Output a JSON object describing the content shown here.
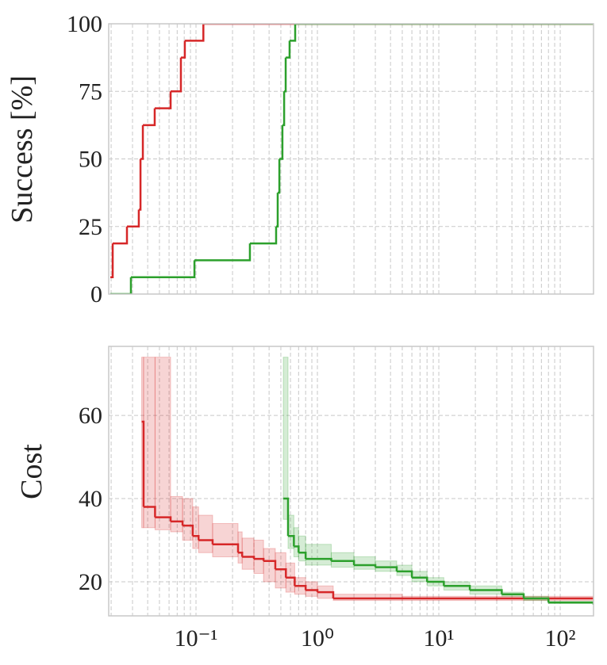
{
  "chart_data": [
    {
      "type": "line",
      "step": "post",
      "ylabel": "Success [%]",
      "xscale": "log",
      "grid": true,
      "minor_grid": true,
      "xlim": [
        0.0191,
        188
      ],
      "xticks": [
        0.1,
        1,
        10,
        100
      ],
      "ylim": [
        0,
        100
      ],
      "yticks": [
        0,
        25,
        50,
        75,
        100
      ],
      "series": [
        {
          "color": "#d62728",
          "x": [
            0.0197,
            0.0206,
            0.027,
            0.0338,
            0.0349,
            0.0365,
            0.0457,
            0.0618,
            0.0751,
            0.0809,
            0.115,
            188
          ],
          "values": [
            6.25,
            18.75,
            25,
            31.25,
            50,
            62.5,
            68.75,
            75,
            87.5,
            93.75,
            100,
            100
          ]
        },
        {
          "color": "#2ca02c",
          "x": [
            0.0197,
            0.0291,
            0.0971,
            0.278,
            0.457,
            0.471,
            0.486,
            0.515,
            0.532,
            0.548,
            0.59,
            0.656,
            188
          ],
          "values": [
            0,
            6.25,
            12.5,
            18.75,
            25,
            37.5,
            50,
            62.5,
            75,
            87.5,
            93.75,
            100,
            100
          ]
        }
      ]
    },
    {
      "type": "line",
      "step": "post",
      "ylabel": "Cost",
      "xscale": "log",
      "grid": true,
      "minor_grid": true,
      "xlim": [
        0.0191,
        188
      ],
      "xticks": [
        {
          "value": 0.1,
          "label": "10⁻¹"
        },
        {
          "value": 1,
          "label": "10⁰"
        },
        {
          "value": 10,
          "label": "10¹"
        },
        {
          "value": 100,
          "label": "10²"
        }
      ],
      "ylim": [
        11.8,
        76.6
      ],
      "yticks": [
        20,
        40,
        60
      ],
      "series": [
        {
          "color": "#d62728",
          "x": [
            0.0357,
            0.037,
            0.046,
            0.0618,
            0.0775,
            0.094,
            0.105,
            0.137,
            0.222,
            0.24,
            0.3,
            0.36,
            0.45,
            0.55,
            0.65,
            0.8,
            1.0,
            1.35,
            5,
            30,
            188
          ],
          "values": [
            58.5,
            38,
            35.5,
            34.5,
            33.5,
            31,
            30,
            29,
            27,
            26,
            25.5,
            25,
            23,
            21,
            19,
            18,
            17.5,
            16,
            16,
            16,
            16
          ],
          "lower": [
            33,
            33,
            32.5,
            32,
            30,
            28,
            27,
            26,
            24.5,
            23,
            22,
            20,
            18.5,
            17.5,
            17,
            16.5,
            16,
            15.5,
            15.5,
            15.5,
            15.5
          ],
          "upper": [
            74,
            74,
            74,
            40.5,
            40,
            38,
            36,
            34,
            32,
            30.5,
            30,
            28,
            27,
            24.5,
            21,
            20,
            19,
            17,
            16.5,
            16.5,
            16.5
          ]
        },
        {
          "color": "#2ca02c",
          "x": [
            0.524,
            0.573,
            0.64,
            0.7,
            0.8,
            1.3,
            2.0,
            3.0,
            4.5,
            6,
            8,
            11,
            18,
            33,
            50,
            80,
            188
          ],
          "values": [
            40,
            31,
            28.5,
            27,
            25.5,
            25,
            24,
            23.5,
            22.5,
            21,
            20,
            19,
            18,
            17,
            16,
            15,
            14.5
          ],
          "lower": [
            35,
            28,
            26,
            25,
            24,
            23.5,
            23,
            22.5,
            21.5,
            20,
            19,
            18,
            17,
            16.5,
            15.5,
            14.8,
            14.3
          ],
          "upper": [
            74,
            36,
            33,
            31,
            29,
            27,
            26,
            25,
            24,
            22.5,
            21,
            20,
            19,
            17.5,
            16.5,
            15.3,
            14.8
          ]
        }
      ]
    }
  ]
}
